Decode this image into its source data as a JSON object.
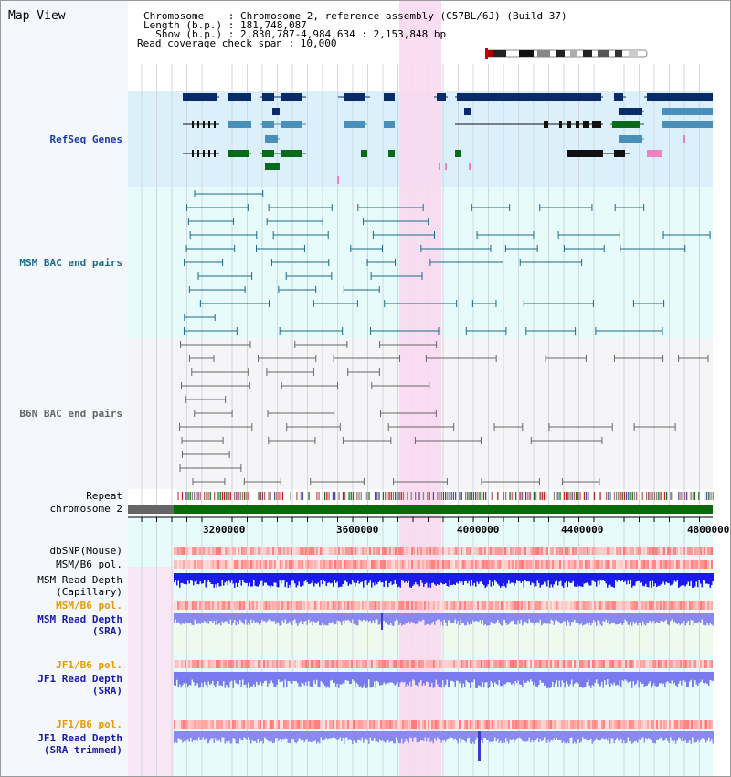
{
  "header": {
    "title": "Map View",
    "info_lines": [
      "Chromosome    : Chromosome 2, reference assembly (C57BL/6J) (Build 37)",
      "Length (b.p.) : 181,748,087",
      "  Show (b.p.) : 2,830,787-4,984,634 : 2,153,848 bp",
      "Read coverage check span : 10,000"
    ]
  },
  "tracks": {
    "refseq": {
      "label": "RefSeq Genes",
      "color": "#1a3aaa"
    },
    "msm_bac": {
      "label": "MSM BAC end pairs",
      "color": "#1a6a8a"
    },
    "b6n_bac": {
      "label": "B6N BAC end pairs",
      "color": "#666666"
    },
    "repeat": {
      "label": "Repeat"
    },
    "chromosome": {
      "label": "chromosome 2"
    },
    "dbsnp": {
      "label": "dbSNP(Mouse)"
    },
    "msm_b6_pol_1": {
      "label": "MSM/B6 pol."
    },
    "msm_depth_cap": {
      "label": "MSM Read Depth\n(Capillary)"
    },
    "msm_b6_pol_2": {
      "label": "MSM/B6 pol.",
      "color": "#e69a00"
    },
    "msm_depth_sra": {
      "label": "MSM Read Depth\n(SRA)",
      "color": "#1a1aaa"
    },
    "jf1_b6_pol_1": {
      "label": "JF1/B6 pol.",
      "color": "#e69a00"
    },
    "jf1_depth_sra": {
      "label": "JF1 Read Depth\n(SRA)",
      "color": "#1a1aaa"
    },
    "jf1_b6_pol_2": {
      "label": "JF1/B6 pol.",
      "color": "#e69a00"
    },
    "jf1_depth_trim": {
      "label": "JF1 Read Depth\n(SRA trimmed)",
      "color": "#1a1aaa"
    }
  },
  "ruler": {
    "ticks": [
      "3200000",
      "3600000",
      "4000000",
      "4400000",
      "4800000"
    ]
  },
  "colors": {
    "highlight": "#f9d9f0",
    "refseq_bg": "#dbf0fb",
    "msm_bg": "#e8fbfb",
    "b6n_bg": "#f5f5f7",
    "gene_dark": "#0a2a6a",
    "gene_mid": "#4a8fb8",
    "gene_green": "#0a6a1a",
    "chrom_green": "#0a6a0a"
  }
}
